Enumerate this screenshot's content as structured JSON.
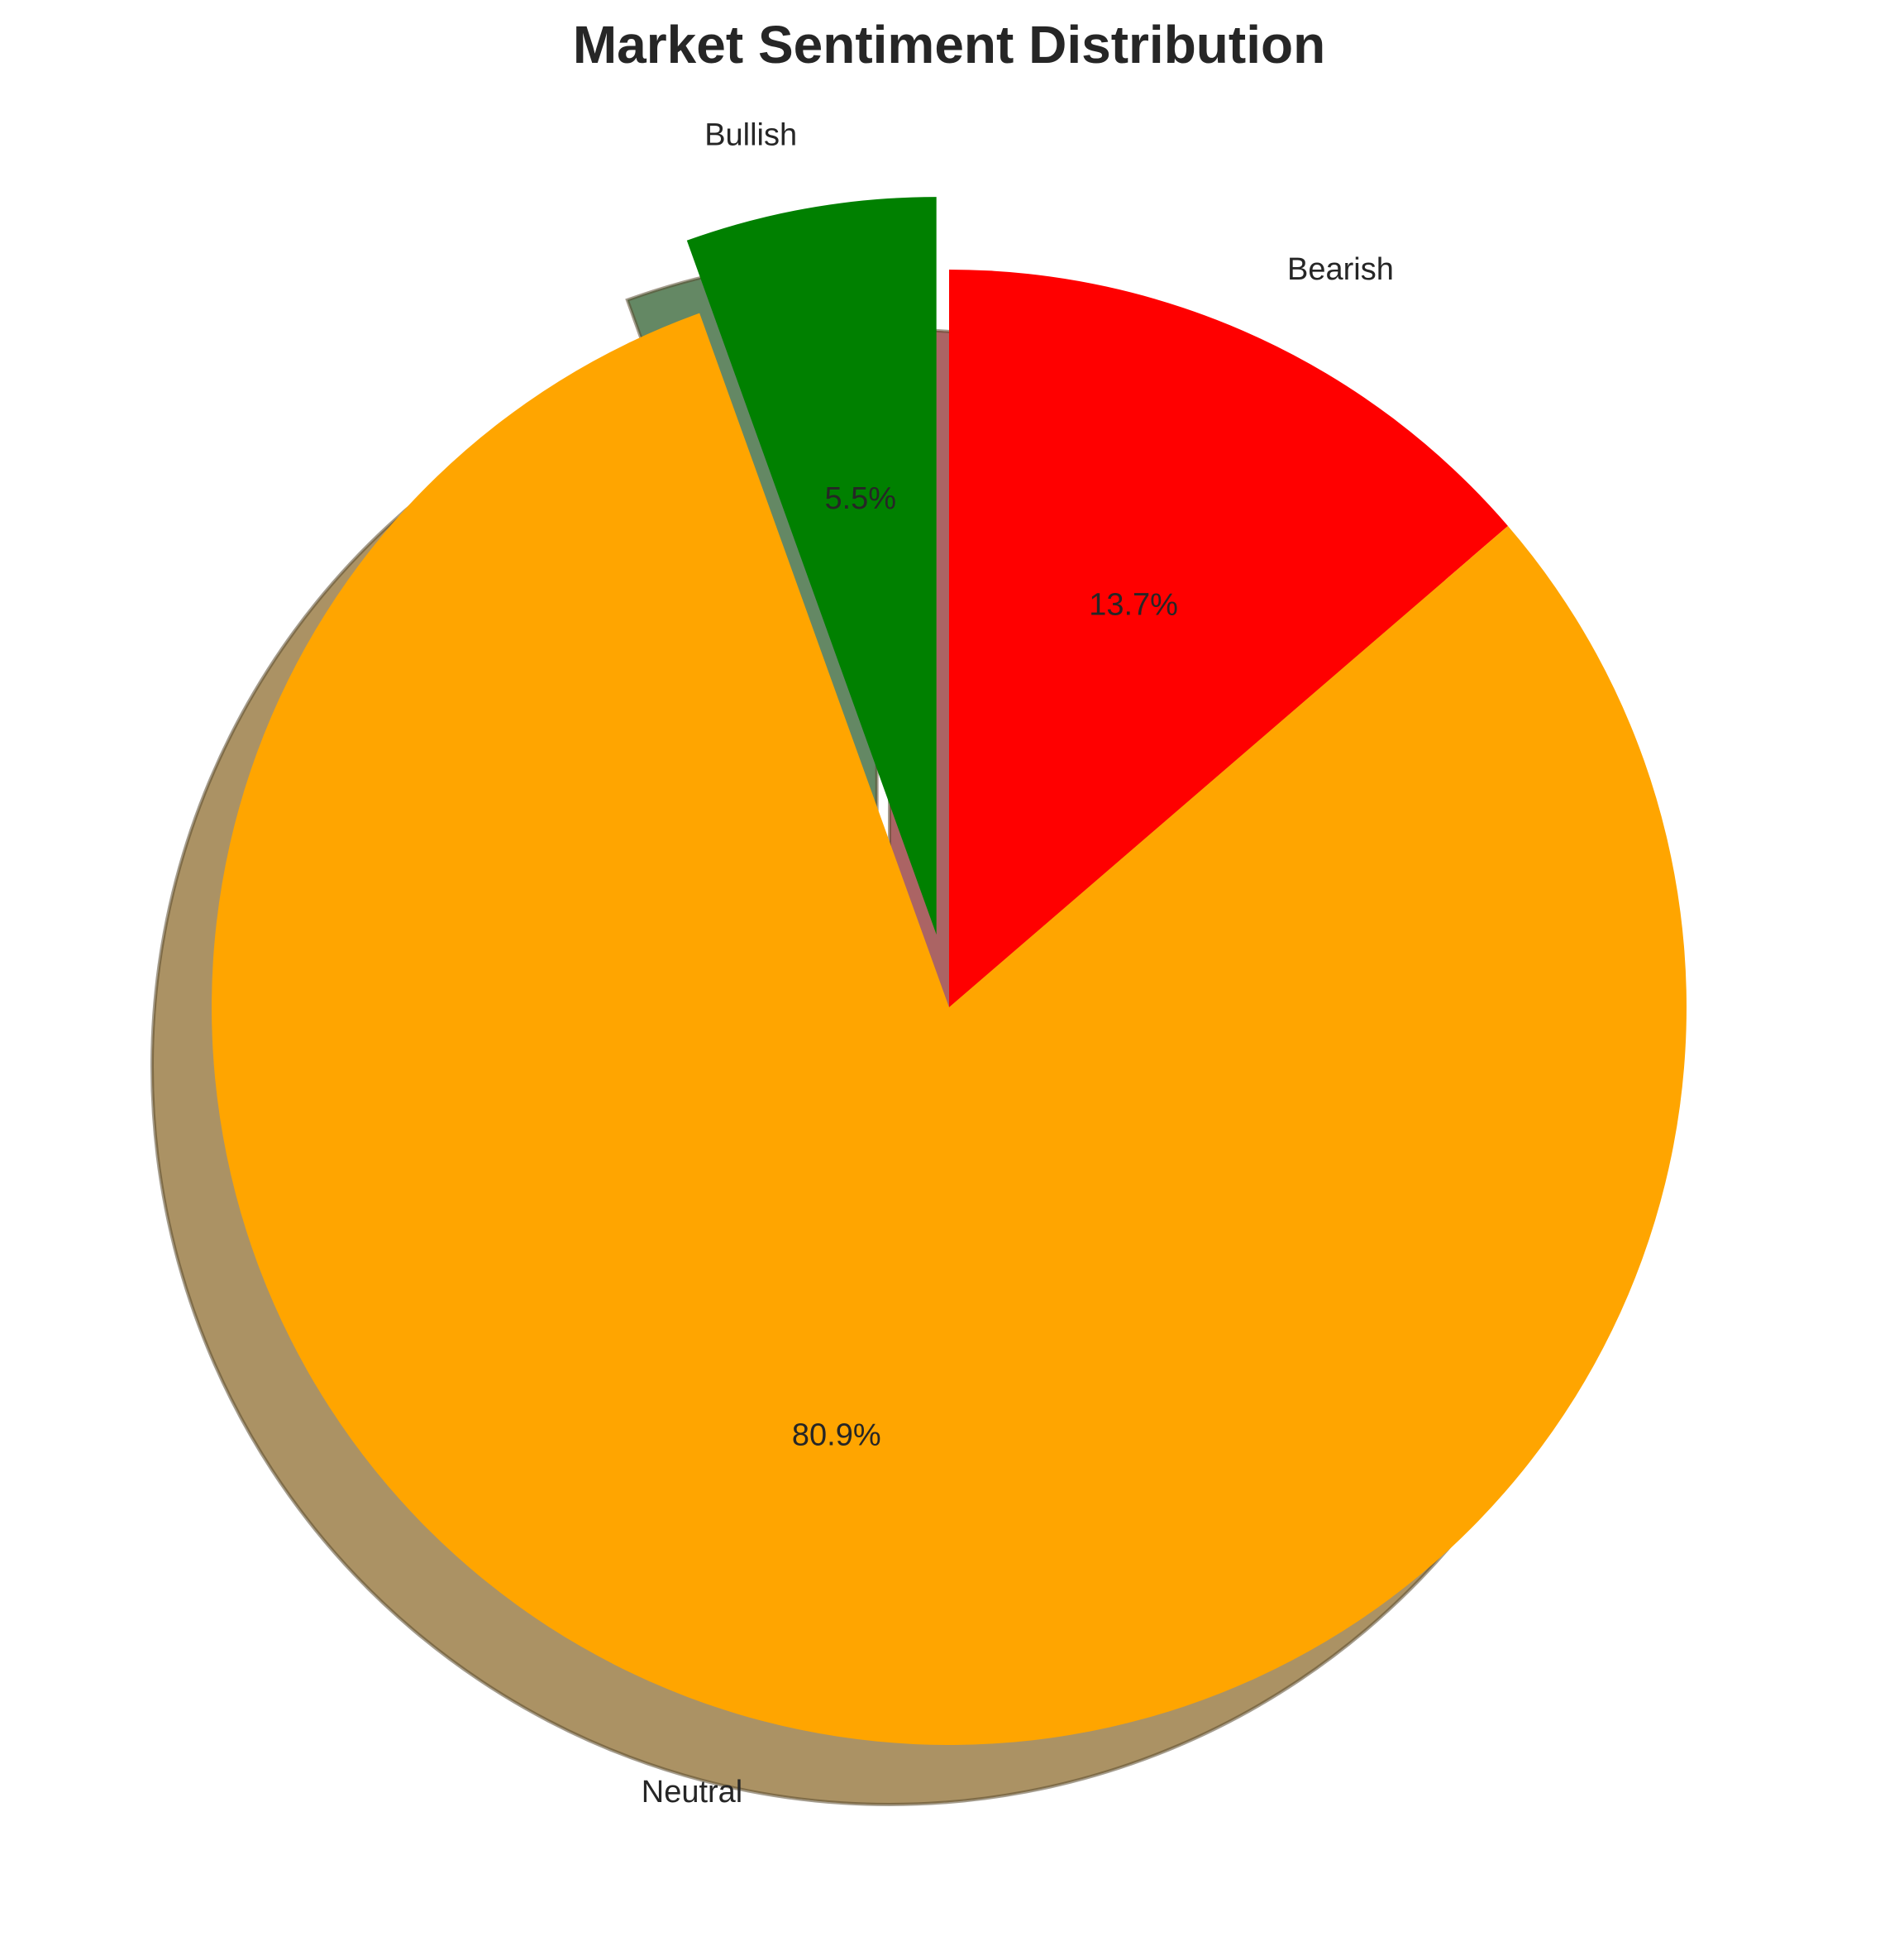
{
  "chart_data": {
    "type": "pie",
    "title": "Market Sentiment Distribution",
    "categories": [
      "Bearish",
      "Neutral",
      "Bullish"
    ],
    "values": [
      13.7,
      80.9,
      5.5
    ],
    "percent_labels": [
      "13.7%",
      "80.9%",
      "5.5%"
    ],
    "colors": [
      "#ff0000",
      "#ffa500",
      "#008000"
    ],
    "exploded": [
      false,
      false,
      true
    ],
    "start_angle_deg": 90,
    "direction": "clockwise",
    "shadow": true,
    "legend": "none"
  }
}
